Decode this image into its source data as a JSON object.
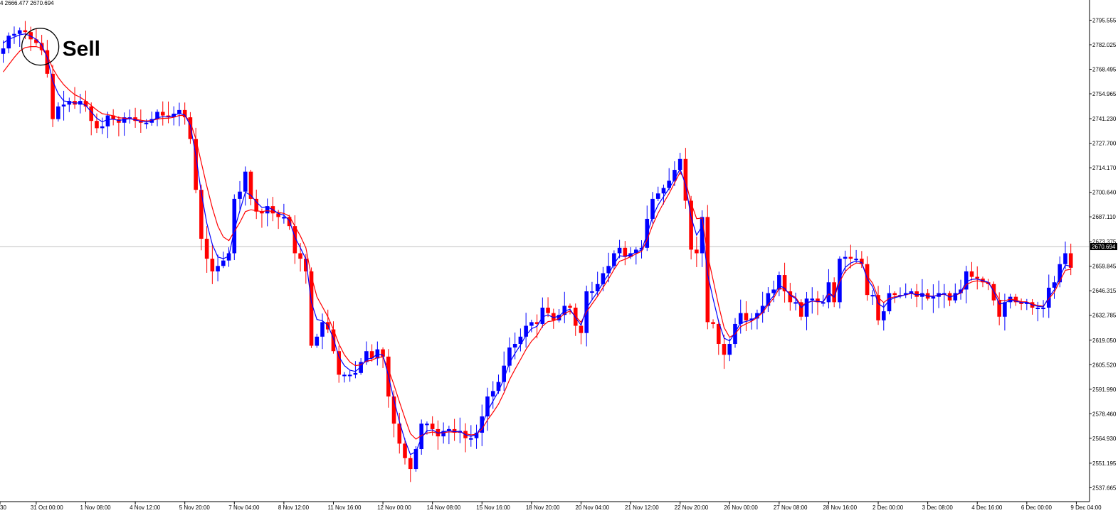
{
  "header": {
    "ohlc_readout": "4 2666.477 2670.694"
  },
  "annotation": {
    "label": "Sell",
    "at_index": 7
  },
  "colors": {
    "bull": "#0000ff",
    "bear": "#ff0000",
    "ma_fast": "#0000ff",
    "ma_slow": "#ff0000",
    "price_line": "#c0c0c0",
    "price_tag_bg": "#000000",
    "price_tag_fg": "#ffffff",
    "axis": "#000000"
  },
  "chart_data": {
    "type": "candlestick",
    "grid": false,
    "ylim": [
      2530.0,
      2802.0
    ],
    "y_ticks": [
      "2795.555",
      "2782.025",
      "2768.495",
      "2754.965",
      "2741.230",
      "2727.700",
      "2714.170",
      "2700.640",
      "2687.110",
      "2673.375",
      "2659.845",
      "2646.315",
      "2632.785",
      "2619.050",
      "2605.520",
      "2591.990",
      "2578.460",
      "2564.930",
      "2551.195",
      "2537.665"
    ],
    "current_price": "2670.694",
    "x_ticks": [
      {
        "label": "30",
        "index": -7
      },
      {
        "label": "31 Oct 00:00",
        "index": 6
      },
      {
        "label": "1 Nov 08:00",
        "index": 15
      },
      {
        "label": "4 Nov 12:00",
        "index": 24
      },
      {
        "label": "5 Nov 20:00",
        "index": 33
      },
      {
        "label": "7 Nov 04:00",
        "index": 42
      },
      {
        "label": "8 Nov 12:00",
        "index": 51
      },
      {
        "label": "11 Nov 16:00",
        "index": 60
      },
      {
        "label": "12 Nov 00:00",
        "index": 69
      },
      {
        "label": "14 Nov 08:00",
        "index": 78
      },
      {
        "label": "15 Nov 16:00",
        "index": 87
      },
      {
        "label": "18 Nov 20:00",
        "index": 96
      },
      {
        "label": "20 Nov 04:00",
        "index": 105
      },
      {
        "label": "21 Nov 12:00",
        "index": 114
      },
      {
        "label": "22 Nov 20:00",
        "index": 123
      },
      {
        "label": "26 Nov 00:00",
        "index": 132
      },
      {
        "label": "27 Nov 08:00",
        "index": 141
      },
      {
        "label": "28 Nov 16:00",
        "index": 150
      },
      {
        "label": "2 Dec 00:00",
        "index": 159
      },
      {
        "label": "3 Dec 08:00",
        "index": 168
      },
      {
        "label": "4 Dec 16:00",
        "index": 177
      },
      {
        "label": "6 Dec 00:00",
        "index": 186
      },
      {
        "label": "9 Dec 04:00",
        "index": 195
      }
    ],
    "close": [
      2780,
      2787,
      2788,
      2790,
      2789,
      2785,
      2783,
      2779,
      2766,
      2741,
      2748,
      2749,
      2751,
      2749,
      2751,
      2748,
      2740,
      2736,
      2737,
      2743,
      2741,
      2739,
      2742,
      2742,
      2740,
      2739,
      2739,
      2741,
      2745,
      2743,
      2742,
      2744,
      2746,
      2742,
      2730,
      2702,
      2675,
      2664,
      2657,
      2660,
      2663,
      2667,
      2697,
      2701,
      2712,
      2697,
      2690,
      2689,
      2693,
      2689,
      2687,
      2687,
      2682,
      2667,
      2664,
      2657,
      2616,
      2621,
      2629,
      2625,
      2613,
      2600,
      2600,
      2600,
      2601,
      2607,
      2613,
      2609,
      2614,
      2610,
      2588,
      2573,
      2562,
      2554,
      2548,
      2559,
      2573,
      2573,
      2570,
      2566,
      2569,
      2570,
      2568,
      2569,
      2565,
      2565,
      2568,
      2577,
      2588,
      2591,
      2596,
      2605,
      2615,
      2617,
      2621,
      2627,
      2629,
      2628,
      2637,
      2634,
      2630,
      2633,
      2638,
      2637,
      2627,
      2623,
      2646,
      2646,
      2650,
      2656,
      2660,
      2667,
      2670,
      2665,
      2667,
      2669,
      2670,
      2686,
      2697,
      2700,
      2703,
      2707,
      2713,
      2719,
      2696,
      2669,
      2667,
      2687,
      2629,
      2628,
      2617,
      2611,
      2617,
      2628,
      2634,
      2630,
      2631,
      2634,
      2638,
      2645,
      2647,
      2655,
      2646,
      2640,
      2640,
      2632,
      2642,
      2642,
      2640,
      2640,
      2651,
      2640,
      2664,
      2665,
      2664,
      2664,
      2661,
      2644,
      2644,
      2630,
      2635,
      2645,
      2644,
      2644,
      2645,
      2646,
      2643,
      2645,
      2642,
      2643,
      2645,
      2645,
      2641,
      2645,
      2647,
      2657,
      2654,
      2653,
      2651,
      2650,
      2641,
      2632,
      2640,
      2643,
      2640,
      2639,
      2640,
      2637,
      2637,
      2637,
      2648,
      2651,
      2661,
      2667,
      2659
    ],
    "ma_fast": [
      2783.0,
      2785.0,
      2786.2,
      2787.5,
      2788.0,
      2786.8,
      2785.0,
      2782.0,
      2775.0,
      2762.0,
      2755.0,
      2751.0,
      2750.6,
      2749.8,
      2750.0,
      2748.5,
      2745.0,
      2741.5,
      2739.5,
      2740.8,
      2741.0,
      2740.2,
      2740.8,
      2741.2,
      2740.6,
      2739.8,
      2739.4,
      2740.0,
      2741.8,
      2742.3,
      2742.2,
      2743.0,
      2744.2,
      2743.2,
      2737.6,
      2721.0,
      2700.3,
      2683.6,
      2671.8,
      2665.0,
      2664.0,
      2665.4,
      2680.0,
      2690.4,
      2700.7,
      2699.0,
      2695.3,
      2692.3,
      2692.6,
      2691.0,
      2689.0,
      2688.0,
      2685.0,
      2676.0,
      2670.0,
      2663.8,
      2640.0,
      2630.5,
      2629.8,
      2627.3,
      2620.0,
      2610.0,
      2605.0,
      2602.5,
      2601.8,
      2604.4,
      2608.7,
      2609.0,
      2611.5,
      2610.8,
      2599.5,
      2586.2,
      2574.1,
      2564.0,
      2556.0,
      2557.5,
      2565.2,
      2569.1,
      2569.6,
      2567.8,
      2568.4,
      2569.2,
      2568.6,
      2568.8,
      2566.9,
      2566.0,
      2567.0,
      2572.0,
      2580.0,
      2585.5,
      2590.8,
      2597.9,
      2606.5,
      2611.8,
      2616.4,
      2621.7,
      2625.4,
      2626.7,
      2631.9,
      2633.0,
      2631.5,
      2632.3,
      2635.2,
      2636.1,
      2631.6,
      2627.3,
      2636.7,
      2641.3,
      2645.7,
      2650.8,
      2655.4,
      2661.2,
      2665.6,
      2665.3,
      2666.2,
      2667.6,
      2668.8,
      2677.4,
      2687.2,
      2693.6,
      2698.3,
      2702.7,
      2707.9,
      2713.5,
      2704.8,
      2686.9,
      2677.0,
      2682.0,
      2655.5,
      2641.8,
      2629.4,
      2620.2,
      2618.6,
      2623.3,
      2628.7,
      2629.4,
      2630.2,
      2632.1,
      2635.1,
      2640.0,
      2643.5,
      2649.3,
      2647.7,
      2643.9,
      2642.0,
      2637.0,
      2639.5,
      2640.8,
      2640.4,
      2640.2,
      2645.6,
      2642.8,
      2653.4,
      2659.2,
      2661.6,
      2662.8,
      2661.9,
      2653.0,
      2648.5,
      2639.3,
      2637.2,
      2641.1,
      2642.5,
      2643.3,
      2644.2,
      2645.1,
      2644.0,
      2644.5,
      2643.3,
      2643.1,
      2644.1,
      2644.6,
      2642.8,
      2643.9,
      2645.5,
      2651.3,
      2652.6,
      2652.8,
      2651.9,
      2651.0,
      2646.0,
      2639.0,
      2639.5,
      2641.3,
      2640.6,
      2639.8,
      2639.9,
      2638.5,
      2637.7,
      2637.4,
      2642.7,
      2646.9,
      2654.0,
      2660.5,
      2659.8
    ],
    "ma_slow": [
      2767.0,
      2771.0,
      2775.0,
      2778.5,
      2780.5,
      2781.0,
      2781.0,
      2780.0,
      2776.0,
      2769.0,
      2764.0,
      2760.0,
      2757.0,
      2754.5,
      2753.0,
      2751.0,
      2748.5,
      2746.0,
      2744.0,
      2743.5,
      2742.8,
      2741.8,
      2741.5,
      2741.3,
      2740.9,
      2740.4,
      2740.0,
      2740.2,
      2741.0,
      2741.4,
      2741.5,
      2742.0,
      2743.0,
      2743.0,
      2739.5,
      2730.0,
      2717.0,
      2704.0,
      2692.0,
      2682.0,
      2676.0,
      2674.0,
      2679.0,
      2684.0,
      2690.0,
      2691.0,
      2690.5,
      2690.0,
      2690.5,
      2690.0,
      2689.5,
      2689.0,
      2687.5,
      2682.0,
      2676.5,
      2670.0,
      2654.5,
      2643.0,
      2637.5,
      2632.0,
      2625.0,
      2617.0,
      2611.0,
      2607.0,
      2605.0,
      2605.5,
      2607.5,
      2608.0,
      2609.5,
      2609.8,
      2603.0,
      2594.5,
      2585.0,
      2576.0,
      2567.5,
      2564.5,
      2566.5,
      2567.8,
      2568.4,
      2567.7,
      2568.0,
      2568.5,
      2568.3,
      2568.5,
      2567.5,
      2566.8,
      2567.2,
      2570.0,
      2575.0,
      2579.2,
      2583.8,
      2590.0,
      2597.2,
      2603.0,
      2608.4,
      2613.9,
      2618.5,
      2621.7,
      2626.8,
      2629.3,
      2629.7,
      2631.0,
      2633.8,
      2635.2,
      2632.3,
      2628.9,
      2634.7,
      2639.0,
      2643.3,
      2648.1,
      2652.8,
      2658.1,
      2662.6,
      2663.7,
      2665.1,
      2666.7,
      2668.0,
      2674.5,
      2682.5,
      2689.1,
      2694.8,
      2700.0,
      2705.8,
      2711.7,
      2706.9,
      2694.8,
      2686.1,
      2686.4,
      2666.1,
      2652.2,
      2638.2,
      2626.0,
      2620.6,
      2622.5,
      2626.5,
      2628.1,
      2629.5,
      2631.5,
      2634.3,
      2638.6,
      2642.2,
      2647.6,
      2647.1,
      2644.4,
      2642.6,
      2638.2,
      2639.6,
      2640.6,
      2640.3,
      2640.2,
      2644.6,
      2642.6,
      2651.3,
      2656.9,
      2659.9,
      2661.6,
      2661.4,
      2654.6,
      2650.4,
      2642.6,
      2639.8,
      2642.2,
      2643.0,
      2643.5,
      2644.1,
      2644.8,
      2644.0,
      2644.4,
      2643.5,
      2643.3,
      2644.0,
      2644.4,
      2643.0,
      2643.8,
      2645.0,
      2649.7,
      2651.2,
      2651.8,
      2651.4,
      2650.8,
      2647.0,
      2641.2,
      2640.8,
      2641.7,
      2641.1,
      2640.3,
      2640.2,
      2639.0,
      2638.2,
      2637.8,
      2641.9,
      2645.5,
      2651.6,
      2657.6,
      2658.2
    ]
  }
}
